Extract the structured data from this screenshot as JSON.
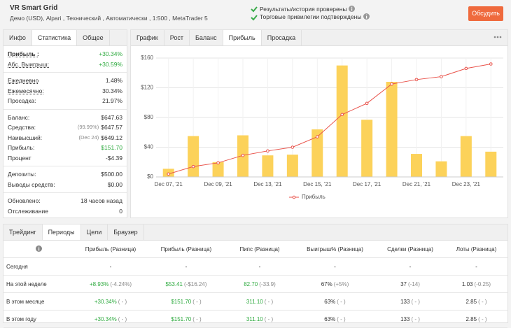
{
  "header": {
    "title": "VR Smart Grid",
    "subtitle": "Демо (USD), Alpari , Технический , Автоматически , 1:500 , MetaTrader 5",
    "checks": [
      "Результаты/история проверены",
      "Торговые привилегии подтверждены"
    ],
    "button": "Обсудить"
  },
  "stats": {
    "tabs": [
      "Инфо",
      "Статистика",
      "Общее"
    ],
    "active_tab": 1,
    "groups": [
      [
        {
          "label": "Прибыль :",
          "value": "+30.34%",
          "color": "#2eaa3f",
          "underline": true,
          "bold": true
        },
        {
          "label": "Абс. Выигрыш:",
          "value": "+30.59%",
          "color": "#2eaa3f",
          "underline": true
        }
      ],
      [
        {
          "label": "Ежедневно",
          "value": "1.48%",
          "underline": true
        },
        {
          "label": "Ежемесячно:",
          "value": "30.34%",
          "underline": true
        },
        {
          "label": "Просадка:",
          "value": "21.97%"
        }
      ],
      [
        {
          "label": "Баланс:",
          "value": "$647.63"
        },
        {
          "label": "Средства:",
          "note": "(99.99%)",
          "value": "$647.57"
        },
        {
          "label": "Наивысший:",
          "note": "(Dec 24)",
          "value": "$649.12"
        },
        {
          "label": "Прибыль:",
          "value": "$151.70",
          "color": "#2eaa3f"
        },
        {
          "label": "Процент",
          "value": "-$4.39"
        }
      ],
      [
        {
          "label": "Депозиты:",
          "value": "$500.00"
        },
        {
          "label": "Выводы средств:",
          "value": "$0.00"
        }
      ],
      [
        {
          "label": "Обновлено:",
          "value": "18 часов назад"
        },
        {
          "label": "Отслеживание",
          "value": "0"
        }
      ]
    ]
  },
  "chart_tabs": {
    "tabs": [
      "График",
      "Рост",
      "Баланс",
      "Прибыль",
      "Просадка"
    ],
    "active_tab": 3
  },
  "chart_data": {
    "type": "combo",
    "categories": [
      "Dec 07, '21",
      null,
      "Dec 09, '21",
      null,
      "Dec 13, '21",
      null,
      "Dec 15, '21",
      null,
      "Dec 17, '21",
      null,
      "Dec 21, '21",
      null,
      "Dec 23, '21",
      null
    ],
    "series": [
      {
        "type": "bar",
        "color": "#fcd25a",
        "values": [
          11,
          55,
          20,
          56,
          29,
          30,
          64,
          150,
          77,
          128,
          31,
          21,
          55,
          34
        ]
      },
      {
        "type": "line",
        "name": "Прибыль",
        "color": "#e9524a",
        "values": [
          4,
          14,
          19,
          29,
          35,
          40,
          54,
          84,
          99,
          125,
          131,
          135,
          146,
          152
        ]
      }
    ],
    "ylim": [
      0,
      160
    ],
    "yticks": [
      {
        "value": 0,
        "label": "$0"
      },
      {
        "value": 40,
        "label": "$40"
      },
      {
        "value": 80,
        "label": "$80"
      },
      {
        "value": 120,
        "label": "$120"
      },
      {
        "value": 160,
        "label": "$160"
      }
    ],
    "grid": true
  },
  "periods": {
    "tabs": [
      "Трейдинг",
      "Периоды",
      "Цели",
      "Браузер"
    ],
    "active_tab": 1,
    "header": [
      "Прибыль (Разница)",
      "Прибыль (Разница)",
      "Пипс (Разница)",
      "Выигрыш% (Разница)",
      "Сделки (Разница)",
      "Лоты (Разница)"
    ],
    "rows": [
      {
        "label": "Сегодня",
        "cells": [
          [
            "-"
          ],
          [
            "-"
          ],
          [
            "-"
          ],
          [
            "-"
          ],
          [
            "-"
          ],
          [
            "-"
          ]
        ]
      },
      {
        "label": "На этой неделе",
        "cells": [
          [
            "+8.93%",
            "(-4.24%)"
          ],
          [
            "$53.41",
            "(-$16.24)"
          ],
          [
            "82.70",
            "(-33.9)"
          ],
          [
            "67%",
            "(+5%)"
          ],
          [
            "37",
            "(-14)"
          ],
          [
            "1.03",
            "(-0.25)"
          ]
        ]
      },
      {
        "label": "В этом месяце",
        "cells": [
          [
            "+30.34%",
            "( - )"
          ],
          [
            "$151.70",
            "( - )"
          ],
          [
            "311.10",
            "( - )"
          ],
          [
            "63%",
            "( - )"
          ],
          [
            "133",
            "( - )"
          ],
          [
            "2.85",
            "( - )"
          ]
        ]
      },
      {
        "label": "В этом году",
        "cells": [
          [
            "+30.34%",
            "( - )"
          ],
          [
            "$151.70",
            "( - )"
          ],
          [
            "311.10",
            "( - )"
          ],
          [
            "63%",
            "( - )"
          ],
          [
            "133",
            "( - )"
          ],
          [
            "2.85",
            "( - )"
          ]
        ]
      }
    ]
  }
}
